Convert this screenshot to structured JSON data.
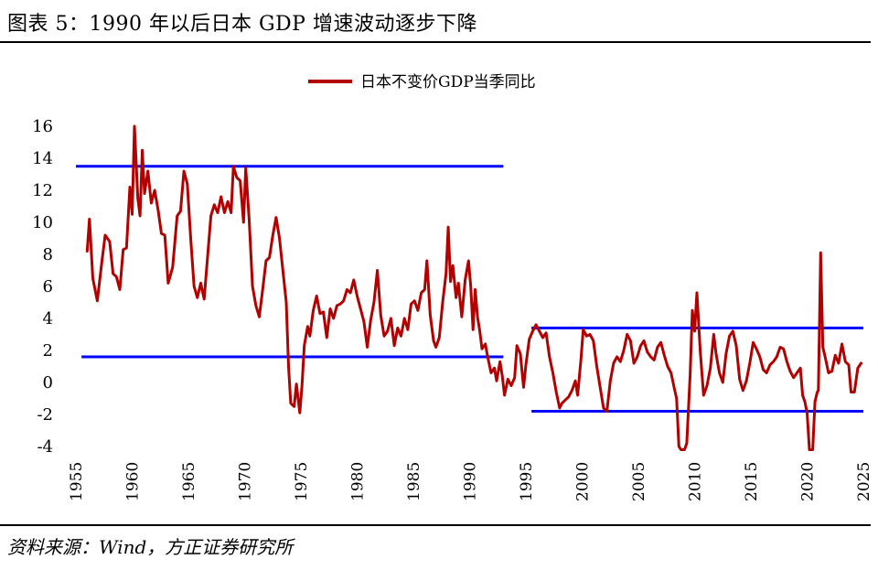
{
  "header": {
    "title": "图表 5：1990 年以后日本 GDP 增速波动逐步下降"
  },
  "footer": {
    "source": "资料来源：Wind，方正证券研究所"
  },
  "chart_data": {
    "type": "line",
    "legend": {
      "label": "日本不变价GDP当季同比",
      "placement": "top-center"
    },
    "ylim": [
      -4,
      16
    ],
    "yticks": [
      -4,
      -2,
      0,
      2,
      4,
      6,
      8,
      10,
      12,
      14,
      16
    ],
    "xlim": [
      1955,
      2025
    ],
    "xticks": [
      1955,
      1960,
      1965,
      1970,
      1975,
      1980,
      1985,
      1990,
      1995,
      2000,
      2005,
      2010,
      2015,
      2020,
      2025
    ],
    "line_color": "#b30000",
    "band_color": "#0000ff",
    "grid": false,
    "series": [
      {
        "name": "日本不变价GDP当季同比",
        "points": [
          [
            1956.0,
            8.2
          ],
          [
            1956.2,
            10.2
          ],
          [
            1956.5,
            6.5
          ],
          [
            1956.9,
            5.1
          ],
          [
            1957.3,
            7.5
          ],
          [
            1957.6,
            9.2
          ],
          [
            1958.0,
            8.8
          ],
          [
            1958.3,
            6.8
          ],
          [
            1958.6,
            6.6
          ],
          [
            1958.9,
            5.8
          ],
          [
            1959.2,
            8.3
          ],
          [
            1959.5,
            8.4
          ],
          [
            1959.8,
            12.2
          ],
          [
            1960.0,
            10.5
          ],
          [
            1960.2,
            16.0
          ],
          [
            1960.5,
            11.5
          ],
          [
            1960.7,
            10.4
          ],
          [
            1960.9,
            14.5
          ],
          [
            1961.1,
            11.8
          ],
          [
            1961.4,
            13.2
          ],
          [
            1961.7,
            11.2
          ],
          [
            1962.0,
            12.0
          ],
          [
            1962.3,
            10.8
          ],
          [
            1962.6,
            9.3
          ],
          [
            1962.9,
            9.2
          ],
          [
            1963.2,
            6.2
          ],
          [
            1963.6,
            7.2
          ],
          [
            1964.0,
            10.4
          ],
          [
            1964.3,
            10.7
          ],
          [
            1964.6,
            13.2
          ],
          [
            1964.9,
            12.4
          ],
          [
            1965.2,
            9.0
          ],
          [
            1965.5,
            6.0
          ],
          [
            1965.8,
            5.3
          ],
          [
            1966.1,
            6.2
          ],
          [
            1966.4,
            5.2
          ],
          [
            1966.7,
            7.8
          ],
          [
            1967.0,
            10.4
          ],
          [
            1967.3,
            11.1
          ],
          [
            1967.6,
            10.6
          ],
          [
            1967.9,
            11.6
          ],
          [
            1968.2,
            10.6
          ],
          [
            1968.5,
            11.3
          ],
          [
            1968.8,
            10.6
          ],
          [
            1969.0,
            13.5
          ],
          [
            1969.3,
            12.8
          ],
          [
            1969.6,
            12.6
          ],
          [
            1969.9,
            10.0
          ],
          [
            1970.1,
            13.4
          ],
          [
            1970.4,
            10.2
          ],
          [
            1970.7,
            6.0
          ],
          [
            1971.0,
            4.8
          ],
          [
            1971.3,
            4.1
          ],
          [
            1971.6,
            5.8
          ],
          [
            1971.9,
            7.6
          ],
          [
            1972.2,
            7.8
          ],
          [
            1972.5,
            9.2
          ],
          [
            1972.8,
            10.3
          ],
          [
            1973.1,
            9.0
          ],
          [
            1973.4,
            7.0
          ],
          [
            1973.7,
            5.0
          ],
          [
            1973.9,
            1.0
          ],
          [
            1974.1,
            -1.3
          ],
          [
            1974.4,
            -1.5
          ],
          [
            1974.6,
            -0.1
          ],
          [
            1974.9,
            -1.9
          ],
          [
            1975.1,
            -0.2
          ],
          [
            1975.3,
            2.3
          ],
          [
            1975.6,
            3.5
          ],
          [
            1975.8,
            2.9
          ],
          [
            1976.1,
            4.5
          ],
          [
            1976.4,
            5.4
          ],
          [
            1976.7,
            4.3
          ],
          [
            1977.0,
            4.4
          ],
          [
            1977.3,
            2.8
          ],
          [
            1977.6,
            4.6
          ],
          [
            1977.9,
            4.0
          ],
          [
            1978.2,
            4.8
          ],
          [
            1978.5,
            4.9
          ],
          [
            1978.8,
            5.1
          ],
          [
            1979.1,
            5.8
          ],
          [
            1979.4,
            5.6
          ],
          [
            1979.7,
            6.4
          ],
          [
            1980.0,
            5.4
          ],
          [
            1980.3,
            4.6
          ],
          [
            1980.6,
            3.8
          ],
          [
            1980.9,
            2.2
          ],
          [
            1981.2,
            3.9
          ],
          [
            1981.5,
            5.0
          ],
          [
            1981.8,
            7.0
          ],
          [
            1982.1,
            4.2
          ],
          [
            1982.4,
            2.9
          ],
          [
            1982.7,
            3.2
          ],
          [
            1983.0,
            4.0
          ],
          [
            1983.3,
            2.3
          ],
          [
            1983.6,
            3.4
          ],
          [
            1983.9,
            2.9
          ],
          [
            1984.2,
            4.0
          ],
          [
            1984.5,
            3.3
          ],
          [
            1984.8,
            4.9
          ],
          [
            1985.1,
            5.1
          ],
          [
            1985.4,
            4.5
          ],
          [
            1985.7,
            5.6
          ],
          [
            1986.0,
            5.8
          ],
          [
            1986.2,
            7.6
          ],
          [
            1986.5,
            4.2
          ],
          [
            1986.8,
            2.6
          ],
          [
            1987.0,
            2.2
          ],
          [
            1987.3,
            2.8
          ],
          [
            1987.6,
            5.0
          ],
          [
            1987.9,
            6.8
          ],
          [
            1988.1,
            9.7
          ],
          [
            1988.3,
            6.3
          ],
          [
            1988.5,
            7.3
          ],
          [
            1988.8,
            5.3
          ],
          [
            1989.0,
            6.2
          ],
          [
            1989.3,
            4.1
          ],
          [
            1989.6,
            6.4
          ],
          [
            1989.9,
            7.6
          ],
          [
            1990.1,
            6.0
          ],
          [
            1990.3,
            3.3
          ],
          [
            1990.5,
            5.8
          ],
          [
            1990.7,
            4.1
          ],
          [
            1990.9,
            3.2
          ],
          [
            1991.1,
            2.1
          ],
          [
            1991.4,
            2.4
          ],
          [
            1991.6,
            1.6
          ],
          [
            1991.9,
            0.6
          ],
          [
            1992.2,
            0.9
          ],
          [
            1992.4,
            0.1
          ],
          [
            1992.7,
            1.3
          ],
          [
            1992.9,
            0.4
          ],
          [
            1993.1,
            -0.8
          ],
          [
            1993.4,
            0.2
          ],
          [
            1993.7,
            -0.2
          ],
          [
            1994.0,
            0.3
          ],
          [
            1994.2,
            2.3
          ],
          [
            1994.5,
            1.8
          ],
          [
            1994.8,
            -0.3
          ],
          [
            1995.0,
            1.1
          ],
          [
            1995.3,
            2.7
          ],
          [
            1995.6,
            3.2
          ],
          [
            1995.9,
            3.6
          ],
          [
            1996.2,
            3.2
          ],
          [
            1996.5,
            2.8
          ],
          [
            1996.8,
            3.1
          ],
          [
            1997.1,
            1.6
          ],
          [
            1997.4,
            0.6
          ],
          [
            1997.7,
            -0.6
          ],
          [
            1998.0,
            -1.6
          ],
          [
            1998.2,
            -1.3
          ],
          [
            1998.5,
            -1.1
          ],
          [
            1998.8,
            -0.9
          ],
          [
            1999.1,
            -0.5
          ],
          [
            1999.4,
            0.1
          ],
          [
            1999.6,
            -0.8
          ],
          [
            1999.9,
            1.5
          ],
          [
            2000.1,
            3.3
          ],
          [
            2000.4,
            2.9
          ],
          [
            2000.7,
            3.0
          ],
          [
            2001.0,
            2.6
          ],
          [
            2001.3,
            1.0
          ],
          [
            2001.6,
            -0.3
          ],
          [
            2001.9,
            -1.6
          ],
          [
            2002.2,
            -1.8
          ],
          [
            2002.5,
            0.1
          ],
          [
            2002.8,
            1.2
          ],
          [
            2003.1,
            1.6
          ],
          [
            2003.4,
            1.3
          ],
          [
            2003.7,
            2.0
          ],
          [
            2004.0,
            3.0
          ],
          [
            2004.3,
            2.6
          ],
          [
            2004.6,
            1.2
          ],
          [
            2004.9,
            1.6
          ],
          [
            2005.2,
            2.3
          ],
          [
            2005.5,
            2.6
          ],
          [
            2005.8,
            1.9
          ],
          [
            2006.1,
            1.6
          ],
          [
            2006.4,
            1.4
          ],
          [
            2006.7,
            2.2
          ],
          [
            2007.0,
            2.5
          ],
          [
            2007.3,
            1.7
          ],
          [
            2007.6,
            1.0
          ],
          [
            2007.9,
            0.6
          ],
          [
            2008.2,
            -0.4
          ],
          [
            2008.4,
            -1.0
          ],
          [
            2008.6,
            -4.0
          ],
          [
            2008.8,
            -4.2
          ],
          [
            2009.1,
            -4.2
          ],
          [
            2009.3,
            -3.8
          ],
          [
            2009.6,
            0.5
          ],
          [
            2009.8,
            4.5
          ],
          [
            2010.0,
            3.2
          ],
          [
            2010.2,
            5.6
          ],
          [
            2010.5,
            2.0
          ],
          [
            2010.8,
            -0.8
          ],
          [
            2011.1,
            -0.2
          ],
          [
            2011.4,
            0.9
          ],
          [
            2011.7,
            3.0
          ],
          [
            2011.9,
            1.8
          ],
          [
            2012.2,
            0.6
          ],
          [
            2012.5,
            0.0
          ],
          [
            2012.8,
            1.8
          ],
          [
            2013.1,
            2.9
          ],
          [
            2013.4,
            3.2
          ],
          [
            2013.7,
            2.3
          ],
          [
            2014.0,
            0.2
          ],
          [
            2014.3,
            -0.5
          ],
          [
            2014.6,
            0.1
          ],
          [
            2014.9,
            1.2
          ],
          [
            2015.2,
            2.5
          ],
          [
            2015.5,
            2.1
          ],
          [
            2015.8,
            1.6
          ],
          [
            2016.1,
            0.8
          ],
          [
            2016.4,
            0.6
          ],
          [
            2016.7,
            1.1
          ],
          [
            2017.0,
            1.3
          ],
          [
            2017.3,
            1.6
          ],
          [
            2017.6,
            2.2
          ],
          [
            2017.9,
            2.1
          ],
          [
            2018.2,
            1.3
          ],
          [
            2018.5,
            0.7
          ],
          [
            2018.8,
            0.3
          ],
          [
            2019.1,
            0.6
          ],
          [
            2019.4,
            0.9
          ],
          [
            2019.6,
            -0.8
          ],
          [
            2019.8,
            -1.2
          ],
          [
            2020.0,
            -1.9
          ],
          [
            2020.2,
            -4.2
          ],
          [
            2020.5,
            -4.2
          ],
          [
            2020.7,
            -1.2
          ],
          [
            2020.9,
            -0.6
          ],
          [
            2021.0,
            -0.5
          ],
          [
            2021.2,
            8.1
          ],
          [
            2021.4,
            2.2
          ],
          [
            2021.6,
            1.6
          ],
          [
            2021.9,
            0.6
          ],
          [
            2022.2,
            0.7
          ],
          [
            2022.5,
            1.7
          ],
          [
            2022.8,
            1.2
          ],
          [
            2023.1,
            2.4
          ],
          [
            2023.4,
            1.3
          ],
          [
            2023.7,
            1.1
          ],
          [
            2023.9,
            -0.6
          ],
          [
            2024.2,
            -0.6
          ],
          [
            2024.5,
            0.9
          ],
          [
            2024.8,
            1.2
          ]
        ]
      }
    ],
    "bands": [
      {
        "x": [
          1955.0,
          1993.0
        ],
        "y": 13.5
      },
      {
        "x": [
          1955.5,
          1993.0
        ],
        "y": 1.6
      },
      {
        "x": [
          1995.5,
          2025.0
        ],
        "y": 3.4
      },
      {
        "x": [
          1995.5,
          2025.0
        ],
        "y": -1.8
      }
    ]
  }
}
